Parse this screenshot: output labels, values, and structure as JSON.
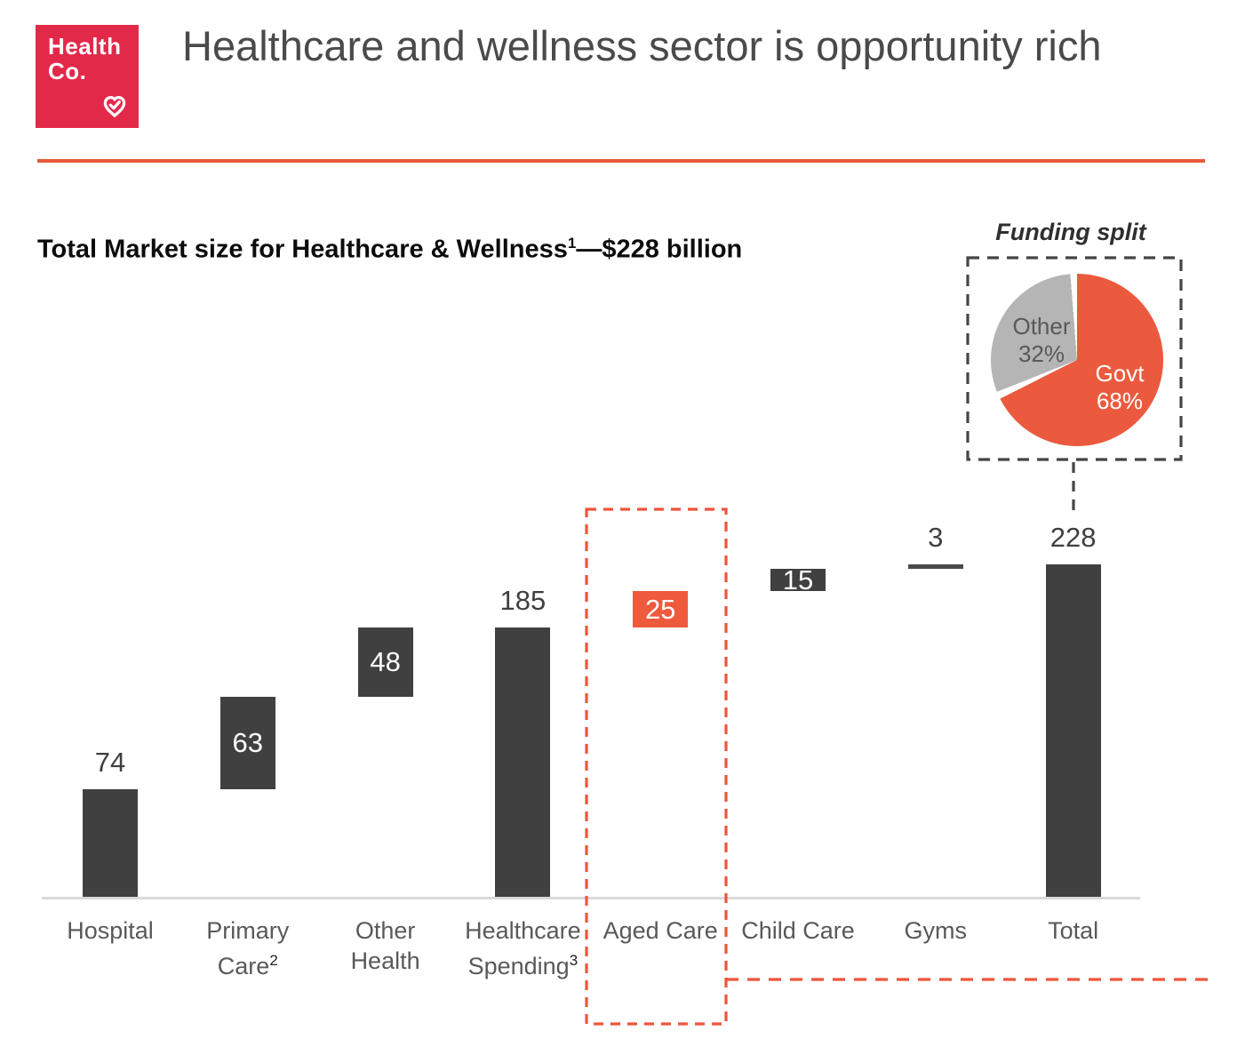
{
  "logo": {
    "line1": "Health",
    "line2": "Co.",
    "bg_color": "#e3294a"
  },
  "header": {
    "title": "Healthcare and wellness sector is opportunity rich"
  },
  "chart_title": {
    "main": "Total Market size for Healthcare & Wellness",
    "sup": "1",
    "rest": "—$228 billion"
  },
  "colors": {
    "bar_dark": "#404040",
    "bar_orange": "#ee5a3c",
    "axis_line": "#d9d9d9",
    "category_label": "#595959",
    "value_label_dark": "#3f3f3f",
    "value_label_light": "#ffffff",
    "highlight_dash_orange": "#f0543b",
    "connector_dash_dark": "#454545",
    "header_rule": "#e8573a",
    "pie_govt": "#eb5a3e",
    "pie_other": "#b5b5b5"
  },
  "chart_data": [
    {
      "type": "bar",
      "subtype": "waterfall",
      "title": "Total Market size for Healthcare & Wellness¹—$228 billion",
      "unit": "$ billion",
      "total": 228,
      "ylim": [
        0,
        228
      ],
      "grid": false,
      "categories": [
        "Hospital",
        "Primary Care²",
        "Other Health",
        "Healthcare Spending³",
        "Aged Care",
        "Child Care",
        "Gyms",
        "Total"
      ],
      "values": [
        74,
        63,
        48,
        185,
        25,
        15,
        3,
        228
      ],
      "bars": [
        {
          "key": "hospital",
          "label_lines": [
            "Hospital"
          ],
          "sup": "",
          "value": 74,
          "start": 0,
          "end": 74,
          "color": "dark",
          "style": "bar",
          "value_label": "74",
          "value_label_pos": "above"
        },
        {
          "key": "primary-care",
          "label_lines": [
            "Primary",
            "Care"
          ],
          "sup": "2",
          "value": 63,
          "start": 74,
          "end": 137,
          "color": "dark",
          "style": "bar",
          "value_label": "63",
          "value_label_pos": "inside"
        },
        {
          "key": "other-health",
          "label_lines": [
            "Other",
            "Health"
          ],
          "sup": "",
          "value": 48,
          "start": 137,
          "end": 185,
          "color": "dark",
          "style": "bar",
          "value_label": "48",
          "value_label_pos": "inside"
        },
        {
          "key": "healthcare-spending",
          "label_lines": [
            "Healthcare",
            "Spending"
          ],
          "sup": "3",
          "value": 185,
          "start": 0,
          "end": 185,
          "color": "dark",
          "style": "bar",
          "value_label": "185",
          "value_label_pos": "above"
        },
        {
          "key": "aged-care",
          "label_lines": [
            "Aged Care"
          ],
          "sup": "",
          "value": 25,
          "start": 185,
          "end": 210,
          "color": "orange",
          "style": "bar",
          "value_label": "25",
          "value_label_pos": "inside"
        },
        {
          "key": "child-care",
          "label_lines": [
            "Child Care"
          ],
          "sup": "",
          "value": 15,
          "start": 210,
          "end": 225,
          "color": "dark",
          "style": "bar",
          "value_label": "15",
          "value_label_pos": "inside"
        },
        {
          "key": "gyms",
          "label_lines": [
            "Gyms"
          ],
          "sup": "",
          "value": 3,
          "start": 225,
          "end": 228,
          "color": "dark",
          "style": "tick",
          "value_label": "3",
          "value_label_pos": "above"
        },
        {
          "key": "total",
          "label_lines": [
            "Total"
          ],
          "sup": "",
          "value": 228,
          "start": 0,
          "end": 228,
          "color": "dark",
          "style": "bar",
          "value_label": "228",
          "value_label_pos": "above"
        }
      ],
      "annotation": "Aged Care column outlined with orange dashed box, linked by dashed leader lines to the Funding split pie"
    },
    {
      "type": "pie",
      "title": "Funding split",
      "start_angle": "top",
      "direction": "clockwise",
      "slices": [
        {
          "label": "Govt",
          "value": 68,
          "pct_label": "68%",
          "color": "#eb5a3e",
          "text_color": "#ffffff"
        },
        {
          "label": "Other",
          "value": 32,
          "pct_label": "32%",
          "color": "#b5b5b5",
          "text_color": "#595959"
        }
      ]
    }
  ]
}
